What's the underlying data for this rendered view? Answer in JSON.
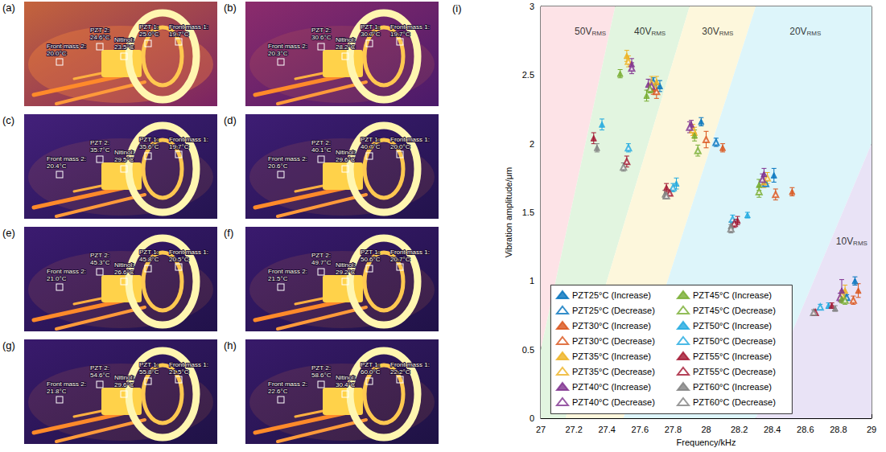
{
  "panels": [
    {
      "letter": "(a)",
      "labels": [
        {
          "name": "Front mass 2:",
          "reading": "20.0°C"
        },
        {
          "name": "PZT 2:",
          "reading": "24.6°C"
        },
        {
          "name": "Nitinol:",
          "reading": "23.5°C"
        },
        {
          "name": "PZT 1:",
          "reading": "25.0°C"
        },
        {
          "name": "Front mass 1:",
          "reading": "19.7°C"
        }
      ]
    },
    {
      "letter": "(b)",
      "labels": [
        {
          "name": "Front mass 2:",
          "reading": "20.3°C"
        },
        {
          "name": "PZT 2:",
          "reading": "30.6°C"
        },
        {
          "name": "Nitinol:",
          "reading": "28.2°C"
        },
        {
          "name": "PZT 1:",
          "reading": "30.7°C"
        },
        {
          "name": "Front mass 1:",
          "reading": "19.7°C"
        }
      ]
    },
    {
      "letter": "(c)",
      "labels": [
        {
          "name": "Front mass 2:",
          "reading": "20.4°C"
        },
        {
          "name": "PZT 2:",
          "reading": "35.7°C"
        },
        {
          "name": "Nitinol:",
          "reading": "29.5°C"
        },
        {
          "name": "PZT 1:",
          "reading": "35.6°C"
        },
        {
          "name": "Front mass 1:",
          "reading": "19.7°C"
        }
      ]
    },
    {
      "letter": "(d)",
      "labels": [
        {
          "name": "Front mass 2:",
          "reading": "20.6°C"
        },
        {
          "name": "PZT 2:",
          "reading": "40.1°C"
        },
        {
          "name": "Nitinol:",
          "reading": "29.6°C"
        },
        {
          "name": "PZT 1:",
          "reading": "40.7°C"
        },
        {
          "name": "Front mass 1:",
          "reading": "20.0°C"
        }
      ]
    },
    {
      "letter": "(e)",
      "labels": [
        {
          "name": "Front mass 2:",
          "reading": "21.0°C"
        },
        {
          "name": "PZT 2:",
          "reading": "45.3°C"
        },
        {
          "name": "Nitinol:",
          "reading": "26.6°C"
        },
        {
          "name": "PZT 1:",
          "reading": "45.8°C"
        },
        {
          "name": "Front mass 1:",
          "reading": "20.5°C"
        }
      ]
    },
    {
      "letter": "(f)",
      "labels": [
        {
          "name": "Front mass 2:",
          "reading": "21.5°C"
        },
        {
          "name": "PZT 2:",
          "reading": "49.7°C"
        },
        {
          "name": "Nitinol:",
          "reading": "29.2°C"
        },
        {
          "name": "PZT 1:",
          "reading": "50.6°C"
        },
        {
          "name": "Front mass 1:",
          "reading": "20.7°C"
        }
      ]
    },
    {
      "letter": "(g)",
      "labels": [
        {
          "name": "Front mass 2:",
          "reading": "21.8°C"
        },
        {
          "name": "PZT 2:",
          "reading": "54.6°C"
        },
        {
          "name": "Nitinol:",
          "reading": "29.6°C"
        },
        {
          "name": "PZT 1:",
          "reading": "55.8°C"
        },
        {
          "name": "Front mass 1:",
          "reading": "21.5°C"
        }
      ]
    },
    {
      "letter": "(h)",
      "labels": [
        {
          "name": "Front mass 2:",
          "reading": "22.6°C"
        },
        {
          "name": "PZT 2:",
          "reading": "58.6°C"
        },
        {
          "name": "Nitinol:",
          "reading": "30.4°C"
        },
        {
          "name": "PZT 1:",
          "reading": "60.0°C"
        },
        {
          "name": "Front mass 1:",
          "reading": "22.2°C"
        }
      ]
    }
  ],
  "chart_data": {
    "letter": "(i)",
    "type": "scatter",
    "x_label": "Frequency/kHz",
    "y_label": "Vibration amplitude/μm",
    "xlim": [
      27,
      29
    ],
    "xticks": [
      27,
      27.2,
      27.4,
      27.6,
      27.8,
      28,
      28.2,
      28.4,
      28.6,
      28.8,
      29
    ],
    "ylim": [
      0,
      3
    ],
    "yticks": [
      0,
      0.5,
      1,
      1.5,
      2,
      2.5,
      3
    ],
    "grid": false,
    "legend": "lower left",
    "regions": [
      {
        "label": "50V",
        "subscript": "RMS",
        "color": "#fde3e7",
        "label_at": [
          27.3,
          2.83
        ]
      },
      {
        "label": "40V",
        "subscript": "RMS",
        "color": "#e2f5e0",
        "label_at": [
          27.66,
          2.83
        ]
      },
      {
        "label": "30V",
        "subscript": "RMS",
        "color": "#fdf7dc",
        "label_at": [
          28.07,
          2.83
        ]
      },
      {
        "label": "20V",
        "subscript": "RMS",
        "color": "#ddf5fa",
        "label_at": [
          28.6,
          2.83
        ]
      },
      {
        "label": "10V",
        "subscript": "RMS",
        "color": "#e9e3f6",
        "label_at": [
          28.88,
          1.3
        ]
      }
    ],
    "region_boundaries": [
      [
        [
          26.91,
          0
        ],
        [
          27.45,
          3
        ]
      ],
      [
        [
          27.15,
          0
        ],
        [
          27.9,
          3
        ]
      ],
      [
        [
          27.5,
          0
        ],
        [
          28.3,
          3
        ]
      ],
      [
        [
          28.3,
          0
        ],
        [
          29.35,
          3
        ]
      ]
    ],
    "series": [
      {
        "name": "PZT25°C (Increase)",
        "color": "#0072bd",
        "marker": "triangle",
        "x": [
          27.72,
          27.97,
          28.41,
          28.9
        ],
        "values": [
          2.42,
          2.16,
          1.77,
          1.0
        ],
        "errors": [
          0.04,
          0.03,
          0.05,
          0.03
        ]
      },
      {
        "name": "PZT25°C (Decrease)",
        "color": "#0072bd",
        "marker": "open triangle",
        "x": [
          27.68,
          28.06,
          28.36,
          28.85
        ],
        "values": [
          2.45,
          2.01,
          1.71,
          0.88
        ],
        "errors": [
          0.03,
          0.03,
          0.02,
          0.02
        ]
      },
      {
        "name": "PZT30°C (Increase)",
        "color": "#d95319",
        "marker": "triangle",
        "x": [
          27.68,
          28.1,
          28.52,
          28.92
        ],
        "values": [
          2.4,
          1.97,
          1.65,
          0.93
        ],
        "errors": [
          0.04,
          0.03,
          0.03,
          0.05
        ]
      },
      {
        "name": "PZT30°C (Decrease)",
        "color": "#d95319",
        "marker": "open triangle",
        "x": [
          27.7,
          28.0,
          28.42,
          28.89
        ],
        "values": [
          2.38,
          2.03,
          1.63,
          0.86
        ],
        "errors": [
          0.05,
          0.06,
          0.04,
          0.03
        ]
      },
      {
        "name": "PZT35°C (Increase)",
        "color": "#edb120",
        "marker": "triangle",
        "x": [
          27.52,
          27.7,
          27.93,
          28.35,
          28.84
        ],
        "values": [
          2.64,
          2.45,
          2.08,
          1.72,
          0.93
        ],
        "errors": [
          0.04,
          0.04,
          0.04,
          0.04,
          0.04
        ]
      },
      {
        "name": "PZT35°C (Decrease)",
        "color": "#edb120",
        "marker": "open triangle",
        "x": [
          27.53,
          27.67,
          27.92,
          28.37,
          28.82
        ],
        "values": [
          2.6,
          2.44,
          2.1,
          1.75,
          0.9
        ],
        "errors": [
          0.04,
          0.05,
          0.04,
          0.04,
          0.03
        ]
      },
      {
        "name": "PZT40°C (Increase)",
        "color": "#7e2f8e",
        "marker": "triangle",
        "x": [
          27.55,
          27.65,
          27.91,
          28.35,
          28.82
        ],
        "values": [
          2.58,
          2.43,
          2.14,
          1.78,
          0.93
        ],
        "errors": [
          0.04,
          0.04,
          0.03,
          0.04,
          0.08
        ]
      },
      {
        "name": "PZT40°C (Decrease)",
        "color": "#7e2f8e",
        "marker": "open triangle",
        "x": [
          27.55,
          27.67,
          27.9,
          28.34,
          28.81
        ],
        "values": [
          2.55,
          2.42,
          2.12,
          1.74,
          0.88
        ],
        "errors": [
          0.04,
          0.04,
          0.04,
          0.04,
          0.03
        ]
      },
      {
        "name": "PZT45°C (Increase)",
        "color": "#77ac30",
        "marker": "triangle",
        "x": [
          27.48,
          27.64,
          27.93,
          28.32,
          28.82
        ],
        "values": [
          2.51,
          2.35,
          2.06,
          1.7,
          0.87
        ],
        "errors": [
          0.03,
          0.04,
          0.04,
          0.04,
          0.03
        ]
      },
      {
        "name": "PZT45°C (Decrease)",
        "color": "#77ac30",
        "marker": "open triangle",
        "x": [
          27.66,
          27.95,
          28.32,
          28.84
        ],
        "values": [
          2.4,
          1.95,
          1.65,
          0.86
        ],
        "errors": [
          0.03,
          0.04,
          0.04,
          0.03
        ]
      },
      {
        "name": "PZT50°C (Increase)",
        "color": "#1fa9e0",
        "marker": "triangle",
        "x": [
          27.37,
          27.82,
          28.25,
          28.74
        ],
        "values": [
          2.14,
          1.71,
          1.48,
          0.82
        ],
        "errors": [
          0.04,
          0.04,
          0.02,
          0.02
        ]
      },
      {
        "name": "PZT50°C (Decrease)",
        "color": "#1fa9e0",
        "marker": "open triangle",
        "x": [
          27.53,
          27.8,
          28.16,
          28.69
        ],
        "values": [
          1.97,
          1.68,
          1.45,
          0.81
        ],
        "errors": [
          0.03,
          0.03,
          0.03,
          0.02
        ]
      },
      {
        "name": "PZT55°C (Increase)",
        "color": "#a2142f",
        "marker": "triangle",
        "x": [
          27.32,
          27.76,
          28.19,
          28.76
        ],
        "values": [
          2.04,
          1.68,
          1.44,
          0.82
        ],
        "errors": [
          0.04,
          0.03,
          0.03,
          0.02
        ]
      },
      {
        "name": "PZT55°C (Decrease)",
        "color": "#a2142f",
        "marker": "open triangle",
        "x": [
          27.52,
          27.78,
          28.17,
          28.66
        ],
        "values": [
          1.87,
          1.64,
          1.42,
          0.77
        ],
        "errors": [
          0.04,
          0.02,
          0.03,
          0.02
        ]
      },
      {
        "name": "PZT60°C (Increase)",
        "color": "#808080",
        "marker": "triangle",
        "x": [
          27.34,
          27.75,
          28.15,
          28.78
        ],
        "values": [
          1.97,
          1.63,
          1.4,
          0.8
        ],
        "errors": [
          0.03,
          0.03,
          0.03,
          0.02
        ]
      },
      {
        "name": "PZT60°C (Decrease)",
        "color": "#808080",
        "marker": "open triangle",
        "x": [
          27.5,
          27.76,
          28.15,
          28.65
        ],
        "values": [
          1.83,
          1.62,
          1.38,
          0.77
        ],
        "errors": [
          0.03,
          0.02,
          0.03,
          0.02
        ]
      }
    ]
  }
}
